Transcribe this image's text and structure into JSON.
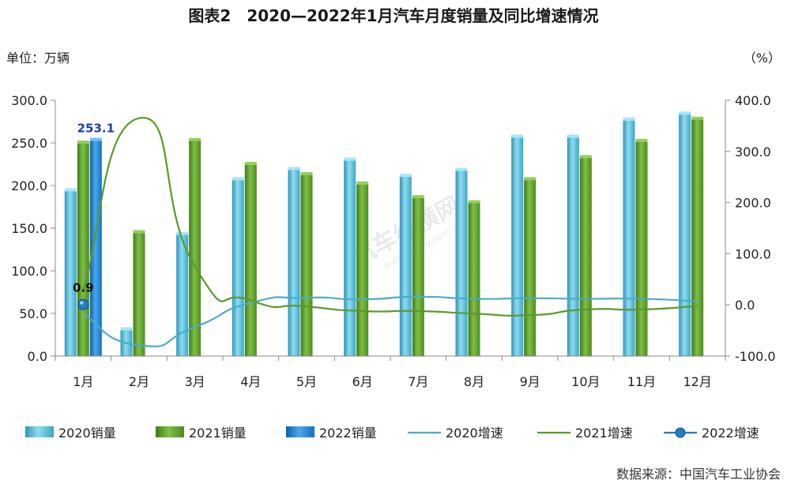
{
  "chart_data": {
    "type": "bar",
    "title": "图表2　2020—2022年1月汽车月度销量及同比增速情况",
    "left_axis_unit": "单位：万辆",
    "right_axis_unit": "（%）",
    "source": "数据来源：中国汽车工业协会",
    "watermark": "汽车纵横网",
    "watermark_sub": "autoreview.com.cn",
    "categories": [
      "1月",
      "2月",
      "3月",
      "4月",
      "5月",
      "6月",
      "7月",
      "8月",
      "9月",
      "10月",
      "11月",
      "12月"
    ],
    "y_left": {
      "ylim": [
        0,
        300
      ],
      "ticks": [
        "0.0",
        "50.0",
        "100.0",
        "150.0",
        "200.0",
        "250.0",
        "300.0"
      ]
    },
    "y_right": {
      "ylim": [
        -100,
        400
      ],
      "ticks": [
        "-100.0",
        "0.0",
        "100.0",
        "200.0",
        "300.0",
        "400.0"
      ]
    },
    "bar_series": [
      {
        "name": "2020销量",
        "color": "#4db8d8",
        "values": [
          194,
          31,
          143,
          207,
          219,
          230,
          211,
          218,
          257,
          257,
          277,
          284
        ]
      },
      {
        "name": "2021销量",
        "color": "#5a9a2a",
        "values": [
          250,
          145,
          253,
          225,
          213,
          202,
          186,
          180,
          207,
          233,
          252,
          278
        ]
      },
      {
        "name": "2022销量",
        "color": "#1f7fc8",
        "values": [
          253.1,
          null,
          null,
          null,
          null,
          null,
          null,
          null,
          null,
          null,
          null,
          null
        ]
      }
    ],
    "line_series": [
      {
        "name": "2020增速",
        "color": "#4bacc6",
        "marker": false,
        "values": [
          -18,
          -79,
          -43,
          4,
          14,
          11,
          16,
          12,
          13,
          12,
          12,
          7
        ]
      },
      {
        "name": "2021增速",
        "color": "#5a9a2a",
        "marker": false,
        "values": [
          30,
          365,
          75,
          9,
          -3,
          -12,
          -12,
          -17,
          -20,
          -9,
          -9,
          -2
        ]
      },
      {
        "name": "2022增速",
        "color": "#1f7fc8",
        "marker": true,
        "values": [
          0.9,
          null,
          null,
          null,
          null,
          null,
          null,
          null,
          null,
          null,
          null,
          null
        ]
      }
    ],
    "data_labels": [
      {
        "text": "253.1",
        "series": "2022销量",
        "category": "1月",
        "color": "#1f3fa0"
      },
      {
        "text": "0.9",
        "series": "2022增速",
        "category": "1月",
        "color": "#111111"
      }
    ],
    "legend": [
      "2020销量",
      "2021销量",
      "2022销量",
      "2020增速",
      "2021增速",
      "2022增速"
    ],
    "legend_position": "bottom",
    "grid": false
  }
}
